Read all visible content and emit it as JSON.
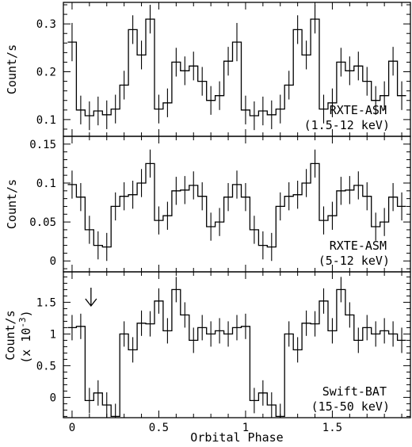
{
  "chart_data": {
    "type": "step",
    "xlabel": "Orbital Phase",
    "x_ticks": [
      0,
      0.5,
      1,
      1.5
    ],
    "xlim": [
      -0.05,
      1.95
    ],
    "bin_width": 0.05,
    "panels": [
      {
        "id": "asm-1",
        "label_line1": "RXTE-ASM",
        "label_line2": "(1.5-12 keV)",
        "ylabel": "Count/s",
        "ylabel2": "",
        "ylim": [
          0.065,
          0.345
        ],
        "y_ticks": [
          "0.1",
          "0.2",
          "0.3"
        ],
        "y_tick_values": [
          0.1,
          0.2,
          0.3
        ],
        "x": [
          0,
          0.05,
          0.1,
          0.15,
          0.2,
          0.25,
          0.3,
          0.35,
          0.4,
          0.45,
          0.5,
          0.55,
          0.6,
          0.65,
          0.7,
          0.75,
          0.8,
          0.85,
          0.9,
          0.95,
          1.0,
          1.05,
          1.1,
          1.15,
          1.2,
          1.25,
          1.3,
          1.35,
          1.4,
          1.45,
          1.5,
          1.55,
          1.6,
          1.65,
          1.7,
          1.75,
          1.8,
          1.85,
          1.9
        ],
        "y": [
          0.262,
          0.12,
          0.108,
          0.118,
          0.11,
          0.122,
          0.172,
          0.288,
          0.235,
          0.31,
          0.122,
          0.135,
          0.22,
          0.202,
          0.212,
          0.18,
          0.14,
          0.15,
          0.222,
          0.262,
          0.12,
          0.108,
          0.118,
          0.11,
          0.122,
          0.172,
          0.288,
          0.235,
          0.31,
          0.122,
          0.135,
          0.22,
          0.202,
          0.212,
          0.18,
          0.14,
          0.15,
          0.222,
          0.15
        ],
        "err": [
          0.04,
          0.03,
          0.03,
          0.03,
          0.03,
          0.03,
          0.03,
          0.03,
          0.03,
          0.03,
          0.03,
          0.03,
          0.03,
          0.03,
          0.03,
          0.03,
          0.03,
          0.03,
          0.03,
          0.04,
          0.03,
          0.03,
          0.03,
          0.03,
          0.03,
          0.03,
          0.03,
          0.03,
          0.03,
          0.03,
          0.03,
          0.03,
          0.03,
          0.03,
          0.03,
          0.03,
          0.03,
          0.03,
          0.03
        ]
      },
      {
        "id": "asm-2",
        "label_line1": "RXTE-ASM",
        "label_line2": "(5-12 keV)",
        "ylabel": "Count/s",
        "ylabel2": "",
        "ylim": [
          -0.014,
          0.16
        ],
        "y_ticks": [
          "0",
          "0.05",
          "0.1",
          "0.15"
        ],
        "y_tick_values": [
          0,
          0.05,
          0.1,
          0.15
        ],
        "x": [
          0,
          0.05,
          0.1,
          0.15,
          0.2,
          0.25,
          0.3,
          0.35,
          0.4,
          0.45,
          0.5,
          0.55,
          0.6,
          0.65,
          0.7,
          0.75,
          0.8,
          0.85,
          0.9,
          0.95,
          1.0,
          1.05,
          1.1,
          1.15,
          1.2,
          1.25,
          1.3,
          1.35,
          1.4,
          1.45,
          1.5,
          1.55,
          1.6,
          1.65,
          1.7,
          1.75,
          1.8,
          1.85,
          1.9
        ],
        "y": [
          0.098,
          0.082,
          0.04,
          0.02,
          0.018,
          0.07,
          0.083,
          0.085,
          0.1,
          0.125,
          0.052,
          0.058,
          0.09,
          0.091,
          0.097,
          0.083,
          0.044,
          0.05,
          0.082,
          0.098,
          0.082,
          0.04,
          0.02,
          0.018,
          0.07,
          0.083,
          0.085,
          0.1,
          0.125,
          0.052,
          0.058,
          0.09,
          0.091,
          0.097,
          0.083,
          0.044,
          0.05,
          0.082,
          0.07
        ],
        "err": [
          0.018,
          0.018,
          0.018,
          0.018,
          0.018,
          0.018,
          0.018,
          0.018,
          0.018,
          0.018,
          0.018,
          0.018,
          0.018,
          0.018,
          0.018,
          0.018,
          0.018,
          0.018,
          0.018,
          0.018,
          0.018,
          0.018,
          0.018,
          0.018,
          0.018,
          0.018,
          0.018,
          0.018,
          0.018,
          0.018,
          0.018,
          0.018,
          0.018,
          0.018,
          0.018,
          0.018,
          0.018,
          0.018,
          0.018
        ]
      },
      {
        "id": "bat",
        "label_line1": "Swift-BAT",
        "label_line2": "(15-50 keV)",
        "ylabel": "Count/s",
        "ylabel2": "(x 10",
        "ylabel2_sup": "-3",
        "ylabel2_end": ")",
        "ylim": [
          -0.32,
          1.98
        ],
        "y_ticks": [
          "0",
          "0.5",
          "1",
          "1.5"
        ],
        "y_tick_values": [
          0,
          0.5,
          1,
          1.5
        ],
        "arrow_x": 0.1,
        "x": [
          0,
          0.05,
          0.1,
          0.15,
          0.2,
          0.25,
          0.3,
          0.35,
          0.4,
          0.45,
          0.5,
          0.55,
          0.6,
          0.65,
          0.7,
          0.75,
          0.8,
          0.85,
          0.9,
          0.95,
          1.0,
          1.05,
          1.1,
          1.15,
          1.2,
          1.25,
          1.3,
          1.35,
          1.4,
          1.45,
          1.5,
          1.55,
          1.6,
          1.65,
          1.7,
          1.75,
          1.8,
          1.85,
          1.9
        ],
        "y": [
          1.1,
          1.12,
          -0.05,
          0.07,
          -0.12,
          -0.3,
          1.0,
          0.75,
          1.17,
          1.16,
          1.52,
          1.05,
          1.7,
          1.3,
          0.9,
          1.1,
          1.0,
          1.05,
          1.0,
          1.1,
          1.12,
          -0.05,
          0.07,
          -0.12,
          -0.3,
          1.0,
          0.75,
          1.17,
          1.16,
          1.52,
          1.05,
          1.7,
          1.3,
          0.9,
          1.1,
          1.0,
          1.05,
          1.0,
          0.9
        ],
        "err": [
          0.2,
          0.2,
          0.2,
          0.2,
          0.2,
          0.2,
          0.2,
          0.2,
          0.2,
          0.2,
          0.2,
          0.2,
          0.2,
          0.2,
          0.2,
          0.2,
          0.2,
          0.2,
          0.2,
          0.2,
          0.2,
          0.2,
          0.2,
          0.2,
          0.2,
          0.2,
          0.2,
          0.2,
          0.2,
          0.2,
          0.2,
          0.2,
          0.2,
          0.2,
          0.2,
          0.2,
          0.2,
          0.2,
          0.2
        ]
      }
    ]
  }
}
